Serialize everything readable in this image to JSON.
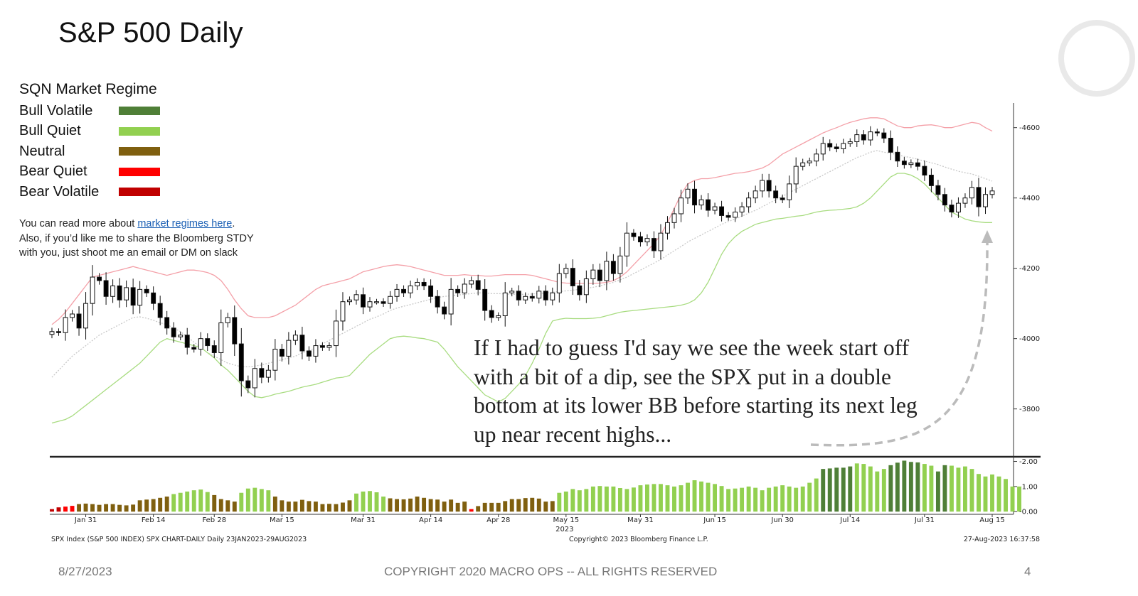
{
  "slide": {
    "title": "S&P 500 Daily",
    "footer_date": "8/27/2023",
    "footer_copyright": "COPYRIGHT 2020 MACRO OPS -- ALL RIGHTS RESERVED",
    "page_number": "4"
  },
  "legend": {
    "title": "SQN Market Regime",
    "items": [
      {
        "label": "Bull Volatile",
        "color": "#4f7f37"
      },
      {
        "label": "Bull Quiet",
        "color": "#92d050"
      },
      {
        "label": "Neutral",
        "color": "#7f5f0f"
      },
      {
        "label": "Bear Quiet",
        "color": "#ff0000"
      },
      {
        "label": "Bear Volatile",
        "color": "#c00000"
      }
    ]
  },
  "note": {
    "line1_prefix": "You can read more about ",
    "link_text": "market regimes here",
    "line1_suffix": ".",
    "line2": "Also, if you’d like me to share the Bloomberg STDY",
    "line3": "with you, just shoot me an email or DM on slack"
  },
  "annotation": {
    "text": "If I had to guess I'd say we see the week start off with a bit of a dip, see the SPX put in a double bottom at its lower BB before starting its next leg up near recent highs..."
  },
  "chart_footer": {
    "left": "SPX Index (S&P 500 INDEX) SPX CHART-DAILY  Daily 23JAN2023-29AUG2023",
    "center": "Copyright© 2023 Bloomberg Finance L.P.",
    "right": "27-Aug-2023 16:37:58"
  },
  "chart_data": [
    {
      "type": "candlestick",
      "title": "",
      "ylim": [
        3670,
        4660
      ],
      "y_ticks": [
        3800,
        4000,
        4200,
        4400,
        4600
      ],
      "x_tick_labels": [
        "Jan 31",
        "Feb 14",
        "Feb 28",
        "Mar 15",
        "Mar 31",
        "Apr 14",
        "Apr 28",
        "May 15",
        "May 31",
        "Jun 15",
        "Jun 30",
        "Jul 14",
        "Jul 31",
        "Aug 15"
      ],
      "x_tick_index": [
        5,
        15,
        24,
        34,
        46,
        56,
        66,
        76,
        87,
        98,
        108,
        118,
        129,
        139
      ],
      "year_label": "2023",
      "close": [
        4020,
        4017,
        4060,
        4070,
        4030,
        4100,
        4175,
        4165,
        4120,
        4150,
        4110,
        4145,
        4095,
        4140,
        4130,
        4100,
        4060,
        4030,
        4005,
        4010,
        3975,
        3970,
        4000,
        3980,
        3960,
        4045,
        4060,
        3985,
        3880,
        3860,
        3915,
        3890,
        3910,
        3970,
        3950,
        3995,
        4010,
        3965,
        3950,
        3980,
        3975,
        3980,
        4050,
        4105,
        4110,
        4125,
        4090,
        4105,
        4105,
        4100,
        4120,
        4140,
        4130,
        4150,
        4160,
        4150,
        4120,
        4090,
        4070,
        4140,
        4130,
        4155,
        4165,
        4140,
        4080,
        4060,
        4065,
        4130,
        4135,
        4110,
        4120,
        4115,
        4135,
        4110,
        4130,
        4185,
        4200,
        4150,
        4125,
        4170,
        4195,
        4165,
        4220,
        4185,
        4235,
        4300,
        4290,
        4275,
        4285,
        4250,
        4300,
        4330,
        4355,
        4400,
        4425,
        4380,
        4395,
        4365,
        4375,
        4350,
        4345,
        4360,
        4375,
        4400,
        4420,
        4450,
        4420,
        4400,
        4395,
        4440,
        4490,
        4500,
        4505,
        4525,
        4555,
        4545,
        4540,
        4555,
        4560,
        4580,
        4565,
        4588,
        4585,
        4570,
        4530,
        4505,
        4495,
        4500,
        4490,
        4465,
        4435,
        4410,
        4380,
        4360,
        4385,
        4400,
        4430,
        4375,
        4410,
        4420
      ],
      "bollinger": {
        "upper": [
          4040,
          4055,
          4075,
          4100,
          4125,
          4150,
          4175,
          4180,
          4185,
          4190,
          4195,
          4200,
          4205,
          4200,
          4195,
          4190,
          4185,
          4180,
          4185,
          4190,
          4195,
          4195,
          4192,
          4188,
          4180,
          4165,
          4140,
          4110,
          4085,
          4065,
          4060,
          4060,
          4060,
          4065,
          4075,
          4085,
          4095,
          4110,
          4125,
          4140,
          4150,
          4155,
          4160,
          4165,
          4170,
          4180,
          4190,
          4195,
          4200,
          4205,
          4208,
          4210,
          4208,
          4205,
          4200,
          4195,
          4190,
          4185,
          4180,
          4180,
          4180,
          4182,
          4180,
          4180,
          4178,
          4178,
          4180,
          4182,
          4182,
          4182,
          4182,
          4180,
          4175,
          4170,
          4165,
          4160,
          4158,
          4157,
          4157,
          4157,
          4157,
          4158,
          4160,
          4165,
          4175,
          4190,
          4210,
          4230,
          4250,
          4270,
          4295,
          4330,
          4370,
          4410,
          4440,
          4450,
          4455,
          4455,
          4458,
          4462,
          4466,
          4470,
          4472,
          4475,
          4480,
          4485,
          4495,
          4510,
          4525,
          4535,
          4545,
          4555,
          4565,
          4575,
          4585,
          4593,
          4600,
          4608,
          4615,
          4620,
          4625,
          4628,
          4628,
          4625,
          4615,
          4605,
          4600,
          4600,
          4605,
          4607,
          4608,
          4605,
          4600,
          4600,
          4605,
          4610,
          4615,
          4612,
          4600,
          4590
        ],
        "middle": [
          3890,
          3910,
          3930,
          3950,
          3965,
          3980,
          3995,
          4010,
          4020,
          4030,
          4040,
          4050,
          4060,
          4062,
          4058,
          4052,
          4045,
          4040,
          4030,
          4020,
          4005,
          3990,
          3975,
          3960,
          3950,
          3940,
          3930,
          3925,
          3920,
          3920,
          3922,
          3925,
          3930,
          3935,
          3940,
          3945,
          3950,
          3960,
          3965,
          3975,
          3985,
          3995,
          4005,
          4015,
          4025,
          4035,
          4045,
          4055,
          4062,
          4070,
          4080,
          4087,
          4092,
          4097,
          4102,
          4107,
          4112,
          4117,
          4120,
          4122,
          4124,
          4126,
          4128,
          4130,
          4130,
          4128,
          4128,
          4127,
          4126,
          4126,
          4126,
          4127,
          4128,
          4130,
          4132,
          4134,
          4136,
          4138,
          4140,
          4143,
          4146,
          4150,
          4155,
          4160,
          4167,
          4175,
          4185,
          4195,
          4205,
          4215,
          4225,
          4238,
          4250,
          4262,
          4275,
          4285,
          4295,
          4305,
          4315,
          4325,
          4333,
          4340,
          4348,
          4357,
          4365,
          4375,
          4385,
          4395,
          4405,
          4415,
          4425,
          4435,
          4445,
          4455,
          4465,
          4475,
          4485,
          4495,
          4505,
          4515,
          4522,
          4530,
          4535,
          4530,
          4527,
          4523,
          4518,
          4515,
          4510,
          4505,
          4500,
          4495,
          4488,
          4482,
          4476,
          4472,
          4468,
          4462,
          4455,
          4448
        ],
        "lower": [
          3760,
          3765,
          3770,
          3780,
          3795,
          3810,
          3825,
          3840,
          3855,
          3870,
          3885,
          3900,
          3915,
          3930,
          3950,
          3970,
          3990,
          4000,
          3995,
          3990,
          3985,
          3980,
          3975,
          3960,
          3945,
          3925,
          3910,
          3890,
          3870,
          3850,
          3835,
          3832,
          3836,
          3842,
          3846,
          3850,
          3856,
          3862,
          3866,
          3870,
          3876,
          3882,
          3888,
          3890,
          3895,
          3915,
          3935,
          3955,
          3970,
          3985,
          4000,
          4005,
          4007,
          4005,
          4002,
          4000,
          3995,
          3990,
          3970,
          3945,
          3920,
          3900,
          3880,
          3860,
          3840,
          3830,
          3820,
          3830,
          3850,
          3870,
          3895,
          3930,
          3970,
          4015,
          4050,
          4055,
          4058,
          4057,
          4057,
          4057,
          4058,
          4060,
          4065,
          4070,
          4075,
          4078,
          4080,
          4082,
          4084,
          4086,
          4088,
          4090,
          4092,
          4095,
          4100,
          4110,
          4130,
          4160,
          4200,
          4240,
          4270,
          4290,
          4305,
          4315,
          4325,
          4330,
          4335,
          4340,
          4342,
          4345,
          4348,
          4350,
          4355,
          4360,
          4363,
          4365,
          4366,
          4368,
          4370,
          4375,
          4385,
          4400,
          4420,
          4440,
          4460,
          4470,
          4470,
          4465,
          4455,
          4440,
          4420,
          4400,
          4380,
          4360,
          4350,
          4340,
          4335,
          4332,
          4330,
          4330
        ]
      }
    },
    {
      "type": "bar",
      "title": "",
      "ylim": [
        -0.05,
        2.1
      ],
      "y_ticks": [
        0.0,
        1.0,
        2.0
      ],
      "y_tick_labels": [
        "0.00",
        "1.00",
        "2.00"
      ],
      "values": [
        0.1,
        0.17,
        0.2,
        0.23,
        0.3,
        0.32,
        0.3,
        0.27,
        0.3,
        0.3,
        0.27,
        0.25,
        0.28,
        0.45,
        0.48,
        0.5,
        0.55,
        0.6,
        0.7,
        0.75,
        0.8,
        0.85,
        0.88,
        0.78,
        0.66,
        0.5,
        0.45,
        0.4,
        0.75,
        0.92,
        0.95,
        0.9,
        0.85,
        0.6,
        0.45,
        0.4,
        0.4,
        0.47,
        0.42,
        0.4,
        0.3,
        0.31,
        0.3,
        0.36,
        0.45,
        0.72,
        0.8,
        0.82,
        0.77,
        0.6,
        0.53,
        0.5,
        0.49,
        0.52,
        0.6,
        0.55,
        0.5,
        0.48,
        0.4,
        0.48,
        0.35,
        0.4,
        0.1,
        0.22,
        0.35,
        0.35,
        0.35,
        0.42,
        0.5,
        0.5,
        0.54,
        0.55,
        0.52,
        0.4,
        0.42,
        0.75,
        0.8,
        0.9,
        0.85,
        0.9,
        1.0,
        1.02,
        1.0,
        1.0,
        0.94,
        0.9,
        0.96,
        1.05,
        1.08,
        1.1,
        1.1,
        1.05,
        1.0,
        1.05,
        1.15,
        1.25,
        1.2,
        1.15,
        1.1,
        1.02,
        0.9,
        0.92,
        0.95,
        1.0,
        0.95,
        0.85,
        0.95,
        1.0,
        1.05,
        1.0,
        0.95,
        1.0,
        1.15,
        1.32,
        1.7,
        1.72,
        1.75,
        1.75,
        1.8,
        1.92,
        1.9,
        1.8,
        1.6,
        1.7,
        1.85,
        1.95,
        2.03,
        1.98,
        1.96,
        1.9,
        1.83,
        1.6,
        1.85,
        1.83,
        1.75,
        1.8,
        1.7,
        1.5,
        1.4,
        1.48,
        1.4,
        1.3,
        1.0,
        1.0
      ],
      "colors": [
        "#c00000",
        "#c00000",
        "#ff0000",
        "#ff0000",
        "#7f5f0f",
        "#7f5f0f",
        "#7f5f0f",
        "#7f5f0f",
        "#7f5f0f",
        "#7f5f0f",
        "#7f5f0f",
        "#7f5f0f",
        "#7f5f0f",
        "#7f5f0f",
        "#7f5f0f",
        "#7f5f0f",
        "#7f5f0f",
        "#7f5f0f",
        "#92d050",
        "#92d050",
        "#92d050",
        "#92d050",
        "#92d050",
        "#92d050",
        "#7f5f0f",
        "#7f5f0f",
        "#7f5f0f",
        "#7f5f0f",
        "#92d050",
        "#92d050",
        "#92d050",
        "#92d050",
        "#92d050",
        "#7f5f0f",
        "#7f5f0f",
        "#7f5f0f",
        "#7f5f0f",
        "#7f5f0f",
        "#7f5f0f",
        "#7f5f0f",
        "#7f5f0f",
        "#7f5f0f",
        "#7f5f0f",
        "#7f5f0f",
        "#7f5f0f",
        "#92d050",
        "#92d050",
        "#92d050",
        "#92d050",
        "#92d050",
        "#7f5f0f",
        "#7f5f0f",
        "#7f5f0f",
        "#7f5f0f",
        "#7f5f0f",
        "#7f5f0f",
        "#7f5f0f",
        "#7f5f0f",
        "#7f5f0f",
        "#7f5f0f",
        "#7f5f0f",
        "#7f5f0f",
        "#ff0000",
        "#7f5f0f",
        "#7f5f0f",
        "#7f5f0f",
        "#7f5f0f",
        "#7f5f0f",
        "#7f5f0f",
        "#7f5f0f",
        "#7f5f0f",
        "#7f5f0f",
        "#7f5f0f",
        "#7f5f0f",
        "#7f5f0f",
        "#92d050",
        "#92d050",
        "#92d050",
        "#92d050",
        "#92d050",
        "#92d050",
        "#92d050",
        "#92d050",
        "#92d050",
        "#92d050",
        "#92d050",
        "#92d050",
        "#92d050",
        "#92d050",
        "#92d050",
        "#92d050",
        "#92d050",
        "#92d050",
        "#92d050",
        "#92d050",
        "#92d050",
        "#92d050",
        "#92d050",
        "#92d050",
        "#92d050",
        "#92d050",
        "#92d050",
        "#92d050",
        "#92d050",
        "#92d050",
        "#92d050",
        "#92d050",
        "#92d050",
        "#92d050",
        "#92d050",
        "#92d050",
        "#92d050",
        "#92d050",
        "#92d050",
        "#4f7f37",
        "#4f7f37",
        "#4f7f37",
        "#4f7f37",
        "#4f7f37",
        "#92d050",
        "#92d050",
        "#92d050",
        "#92d050",
        "#92d050",
        "#4f7f37",
        "#4f7f37",
        "#4f7f37",
        "#4f7f37",
        "#4f7f37",
        "#92d050",
        "#92d050",
        "#4f7f37",
        "#4f7f37",
        "#92d050",
        "#92d050",
        "#92d050",
        "#92d050",
        "#92d050",
        "#92d050",
        "#92d050",
        "#92d050",
        "#92d050",
        "#92d050",
        "#92d050"
      ]
    }
  ],
  "colors": {
    "bb_upper": "#f4a0a8",
    "bb_lower": "#a8dc80",
    "bb_middle": "#c8c8c8",
    "candle_up": "#ffffff",
    "candle_down": "#000000",
    "arrow": "#bbbbbb"
  }
}
